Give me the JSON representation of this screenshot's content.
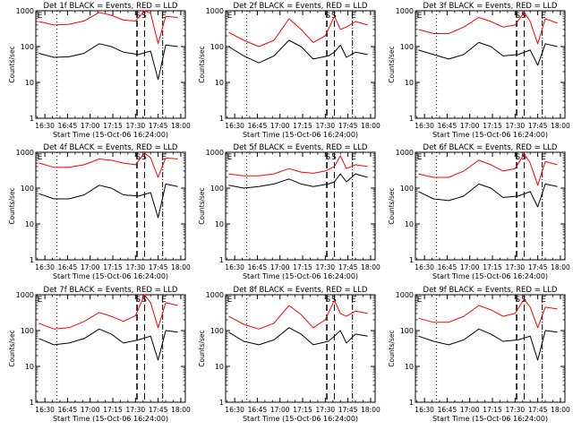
{
  "figure": {
    "panel_title_suffix": "BLACK = Events, RED = LLD",
    "colors": {
      "events": "#000000",
      "lld": "#ff0000",
      "background": "#ffffff"
    }
  },
  "chart_data": [
    {
      "type": "line",
      "title": "Det 1f BLACK = Events, RED = LLD",
      "xlabel": "Start Time (15-Oct-06 16:24:00)",
      "ylabel": "Counts/sec",
      "y_scale": "log",
      "ylim": [
        1,
        1000
      ],
      "xlim": [
        "16:24",
        "18:03"
      ],
      "x_ticks": [
        "16:30",
        "16:45",
        "17:00",
        "17:15",
        "17:30",
        "17:45",
        "18:00"
      ],
      "y_ticks": [
        "1",
        "10",
        "100",
        "1000"
      ],
      "markers": [
        "E",
        "S",
        "S",
        "E"
      ],
      "series": [
        {
          "key": "events",
          "x": [
            "16:26",
            "16:36",
            "16:46",
            "16:56",
            "17:06",
            "17:14",
            "17:22",
            "17:32",
            "17:40",
            "17:45",
            "17:50",
            "17:58"
          ],
          "values": [
            65,
            50,
            52,
            65,
            120,
            100,
            70,
            60,
            75,
            12,
            110,
            100
          ]
        },
        {
          "key": "lld",
          "x": [
            "16:26",
            "16:36",
            "16:46",
            "16:56",
            "17:06",
            "17:14",
            "17:22",
            "17:30",
            "17:36",
            "17:40",
            "17:45",
            "17:50",
            "17:58"
          ],
          "values": [
            500,
            400,
            420,
            520,
            900,
            750,
            550,
            520,
            1000,
            850,
            120,
            700,
            650
          ]
        }
      ]
    },
    {
      "type": "line",
      "title": "Det 2f BLACK = Events, RED = LLD",
      "xlabel": "Start Time (15-Oct-06 16:24:00)",
      "ylabel": "Counts/sec",
      "y_scale": "log",
      "ylim": [
        1,
        1000
      ],
      "xlim": [
        "16:24",
        "18:03"
      ],
      "x_ticks": [
        "16:30",
        "16:45",
        "17:00",
        "17:15",
        "17:30",
        "17:45",
        "18:00"
      ],
      "y_ticks": [
        "1",
        "10",
        "100",
        "1000"
      ],
      "markers": [
        "E",
        "S",
        "S",
        "E"
      ],
      "series": [
        {
          "key": "events",
          "x": [
            "16:26",
            "16:36",
            "16:46",
            "16:56",
            "17:06",
            "17:14",
            "17:22",
            "17:32",
            "17:36",
            "17:40",
            "17:44",
            "17:50",
            "17:58"
          ],
          "values": [
            100,
            55,
            35,
            55,
            150,
            100,
            45,
            55,
            70,
            110,
            50,
            70,
            60
          ]
        },
        {
          "key": "lld",
          "x": [
            "16:26",
            "16:36",
            "16:46",
            "16:56",
            "17:06",
            "17:14",
            "17:22",
            "17:30",
            "17:36",
            "17:40",
            "17:44",
            "17:50",
            "17:58"
          ],
          "values": [
            250,
            150,
            100,
            150,
            600,
            300,
            130,
            200,
            700,
            300,
            350,
            500,
            400
          ]
        }
      ]
    },
    {
      "type": "line",
      "title": "Det 3f BLACK = Events, RED = LLD",
      "xlabel": "Start Time (15-Oct-06 16:24:00)",
      "ylabel": "Counts/sec",
      "y_scale": "log",
      "ylim": [
        1,
        1000
      ],
      "xlim": [
        "16:24",
        "18:03"
      ],
      "x_ticks": [
        "16:30",
        "16:45",
        "17:00",
        "17:15",
        "17:30",
        "17:45",
        "18:00"
      ],
      "y_ticks": [
        "1",
        "10",
        "100",
        "1000"
      ],
      "markers": [
        "E",
        "S",
        "S",
        "E"
      ],
      "series": [
        {
          "key": "events",
          "x": [
            "16:26",
            "16:36",
            "16:46",
            "16:56",
            "17:06",
            "17:14",
            "17:22",
            "17:32",
            "17:40",
            "17:45",
            "17:50",
            "17:58"
          ],
          "values": [
            80,
            60,
            45,
            60,
            130,
            100,
            55,
            60,
            80,
            30,
            120,
            100
          ]
        },
        {
          "key": "lld",
          "x": [
            "16:26",
            "16:36",
            "16:46",
            "16:56",
            "17:06",
            "17:14",
            "17:22",
            "17:30",
            "17:36",
            "17:40",
            "17:45",
            "17:50",
            "17:58"
          ],
          "values": [
            300,
            230,
            230,
            350,
            650,
            500,
            350,
            400,
            900,
            500,
            120,
            600,
            450
          ]
        }
      ]
    },
    {
      "type": "line",
      "title": "Det 4f BLACK = Events, RED = LLD",
      "xlabel": "Start Time (15-Oct-06 16:24:00)",
      "ylabel": "Counts/sec",
      "y_scale": "log",
      "ylim": [
        1,
        1000
      ],
      "xlim": [
        "16:24",
        "18:03"
      ],
      "x_ticks": [
        "16:30",
        "16:45",
        "17:00",
        "17:15",
        "17:30",
        "17:45",
        "18:00"
      ],
      "y_ticks": [
        "1",
        "10",
        "100",
        "1000"
      ],
      "markers": [
        "E",
        "S",
        "S",
        "E"
      ],
      "series": [
        {
          "key": "events",
          "x": [
            "16:26",
            "16:36",
            "16:46",
            "16:56",
            "17:06",
            "17:14",
            "17:22",
            "17:32",
            "17:40",
            "17:45",
            "17:50",
            "17:58"
          ],
          "values": [
            70,
            50,
            50,
            65,
            120,
            100,
            65,
            60,
            75,
            15,
            130,
            110
          ]
        },
        {
          "key": "lld",
          "x": [
            "16:26",
            "16:36",
            "16:46",
            "16:56",
            "17:06",
            "17:14",
            "17:22",
            "17:30",
            "17:36",
            "17:40",
            "17:45",
            "17:50",
            "17:58"
          ],
          "values": [
            500,
            380,
            380,
            450,
            650,
            600,
            500,
            450,
            950,
            700,
            200,
            700,
            650
          ]
        }
      ]
    },
    {
      "type": "line",
      "title": "Det 5f BLACK = Events, RED = LLD",
      "xlabel": "Start Time (15-Oct-06 16:24:00)",
      "ylabel": "Counts/sec",
      "y_scale": "log",
      "ylim": [
        1,
        1000
      ],
      "xlim": [
        "16:24",
        "18:03"
      ],
      "x_ticks": [
        "16:30",
        "16:45",
        "17:00",
        "17:15",
        "17:30",
        "17:45",
        "18:00"
      ],
      "y_ticks": [
        "1",
        "10",
        "100",
        "1000"
      ],
      "markers": [
        "E",
        "S",
        "S",
        "E"
      ],
      "series": [
        {
          "key": "events",
          "x": [
            "16:26",
            "16:36",
            "16:46",
            "16:56",
            "17:06",
            "17:14",
            "17:22",
            "17:32",
            "17:36",
            "17:40",
            "17:44",
            "17:50",
            "17:58"
          ],
          "values": [
            120,
            100,
            110,
            130,
            180,
            130,
            110,
            130,
            150,
            250,
            150,
            250,
            200
          ]
        },
        {
          "key": "lld",
          "x": [
            "16:26",
            "16:36",
            "16:46",
            "16:56",
            "17:06",
            "17:14",
            "17:22",
            "17:30",
            "17:36",
            "17:40",
            "17:44",
            "17:50",
            "17:58"
          ],
          "values": [
            250,
            220,
            220,
            250,
            350,
            280,
            260,
            300,
            400,
            800,
            350,
            450,
            400
          ]
        }
      ]
    },
    {
      "type": "line",
      "title": "Det 6f BLACK = Events, RED = LLD",
      "xlabel": "Start Time (15-Oct-06 16:24:00)",
      "ylabel": "Counts/sec",
      "y_scale": "log",
      "ylim": [
        1,
        1000
      ],
      "xlim": [
        "16:24",
        "18:03"
      ],
      "x_ticks": [
        "16:30",
        "16:45",
        "17:00",
        "17:15",
        "17:30",
        "17:45",
        "18:00"
      ],
      "y_ticks": [
        "1",
        "10",
        "100",
        "1000"
      ],
      "markers": [
        "E",
        "S",
        "S",
        "E"
      ],
      "series": [
        {
          "key": "events",
          "x": [
            "16:26",
            "16:36",
            "16:46",
            "16:56",
            "17:06",
            "17:14",
            "17:22",
            "17:32",
            "17:40",
            "17:45",
            "17:50",
            "17:58"
          ],
          "values": [
            80,
            50,
            45,
            60,
            130,
            100,
            55,
            60,
            80,
            30,
            130,
            110
          ]
        },
        {
          "key": "lld",
          "x": [
            "16:26",
            "16:36",
            "16:46",
            "16:56",
            "17:06",
            "17:14",
            "17:22",
            "17:30",
            "17:36",
            "17:40",
            "17:45",
            "17:50",
            "17:58"
          ],
          "values": [
            250,
            200,
            200,
            300,
            600,
            450,
            300,
            350,
            900,
            500,
            120,
            550,
            450
          ]
        }
      ]
    },
    {
      "type": "line",
      "title": "Det 7f BLACK = Events, RED = LLD",
      "xlabel": "Start Time (15-Oct-06 16:24:00)",
      "ylabel": "Counts/sec",
      "y_scale": "log",
      "ylim": [
        1,
        1000
      ],
      "xlim": [
        "16:24",
        "18:03"
      ],
      "x_ticks": [
        "16:30",
        "16:45",
        "17:00",
        "17:15",
        "17:30",
        "17:45",
        "18:00"
      ],
      "y_ticks": [
        "1",
        "10",
        "100",
        "1000"
      ],
      "markers": [
        "E",
        "S",
        "S",
        "E"
      ],
      "series": [
        {
          "key": "events",
          "x": [
            "16:26",
            "16:36",
            "16:46",
            "16:56",
            "17:06",
            "17:14",
            "17:22",
            "17:32",
            "17:40",
            "17:45",
            "17:50",
            "17:58"
          ],
          "values": [
            60,
            40,
            45,
            60,
            110,
            80,
            45,
            55,
            70,
            15,
            100,
            90
          ]
        },
        {
          "key": "lld",
          "x": [
            "16:26",
            "16:36",
            "16:46",
            "16:56",
            "17:06",
            "17:14",
            "17:22",
            "17:30",
            "17:36",
            "17:40",
            "17:45",
            "17:50",
            "17:58"
          ],
          "values": [
            160,
            110,
            120,
            180,
            320,
            250,
            180,
            260,
            1000,
            600,
            120,
            600,
            500
          ]
        }
      ]
    },
    {
      "type": "line",
      "title": "Det 8f BLACK = Events, RED = LLD",
      "xlabel": "Start Time (15-Oct-06 16:24:00)",
      "ylabel": "Counts/sec",
      "y_scale": "log",
      "ylim": [
        1,
        1000
      ],
      "xlim": [
        "16:24",
        "18:03"
      ],
      "x_ticks": [
        "16:30",
        "16:45",
        "17:00",
        "17:15",
        "17:30",
        "17:45",
        "18:00"
      ],
      "y_ticks": [
        "1",
        "10",
        "100",
        "1000"
      ],
      "markers": [
        "E",
        "S",
        "S",
        "E"
      ],
      "series": [
        {
          "key": "events",
          "x": [
            "16:26",
            "16:36",
            "16:46",
            "16:56",
            "17:06",
            "17:14",
            "17:22",
            "17:32",
            "17:36",
            "17:40",
            "17:44",
            "17:50",
            "17:58"
          ],
          "values": [
            90,
            50,
            40,
            55,
            120,
            80,
            40,
            50,
            70,
            100,
            45,
            80,
            70
          ]
        },
        {
          "key": "lld",
          "x": [
            "16:26",
            "16:36",
            "16:46",
            "16:56",
            "17:06",
            "17:14",
            "17:22",
            "17:30",
            "17:36",
            "17:40",
            "17:44",
            "17:50",
            "17:58"
          ],
          "values": [
            250,
            150,
            110,
            160,
            500,
            280,
            120,
            200,
            700,
            300,
            250,
            350,
            300
          ]
        }
      ]
    },
    {
      "type": "line",
      "title": "Det 9f BLACK = Events, RED = LLD",
      "xlabel": "Start Time (15-Oct-06 16:24:00)",
      "ylabel": "Counts/sec",
      "y_scale": "log",
      "ylim": [
        1,
        1000
      ],
      "xlim": [
        "16:24",
        "18:03"
      ],
      "x_ticks": [
        "16:30",
        "16:45",
        "17:00",
        "17:15",
        "17:30",
        "17:45",
        "18:00"
      ],
      "y_ticks": [
        "1",
        "10",
        "100",
        "1000"
      ],
      "markers": [
        "E",
        "S",
        "S",
        "E"
      ],
      "series": [
        {
          "key": "events",
          "x": [
            "16:26",
            "16:36",
            "16:46",
            "16:56",
            "17:06",
            "17:14",
            "17:22",
            "17:32",
            "17:40",
            "17:45",
            "17:50",
            "17:58"
          ],
          "values": [
            70,
            50,
            40,
            55,
            110,
            80,
            50,
            55,
            70,
            15,
            100,
            90
          ]
        },
        {
          "key": "lld",
          "x": [
            "16:26",
            "16:36",
            "16:46",
            "16:56",
            "17:06",
            "17:14",
            "17:22",
            "17:30",
            "17:36",
            "17:40",
            "17:45",
            "17:50",
            "17:58"
          ],
          "values": [
            220,
            170,
            170,
            250,
            500,
            380,
            250,
            300,
            750,
            450,
            120,
            450,
            400
          ]
        }
      ]
    }
  ]
}
